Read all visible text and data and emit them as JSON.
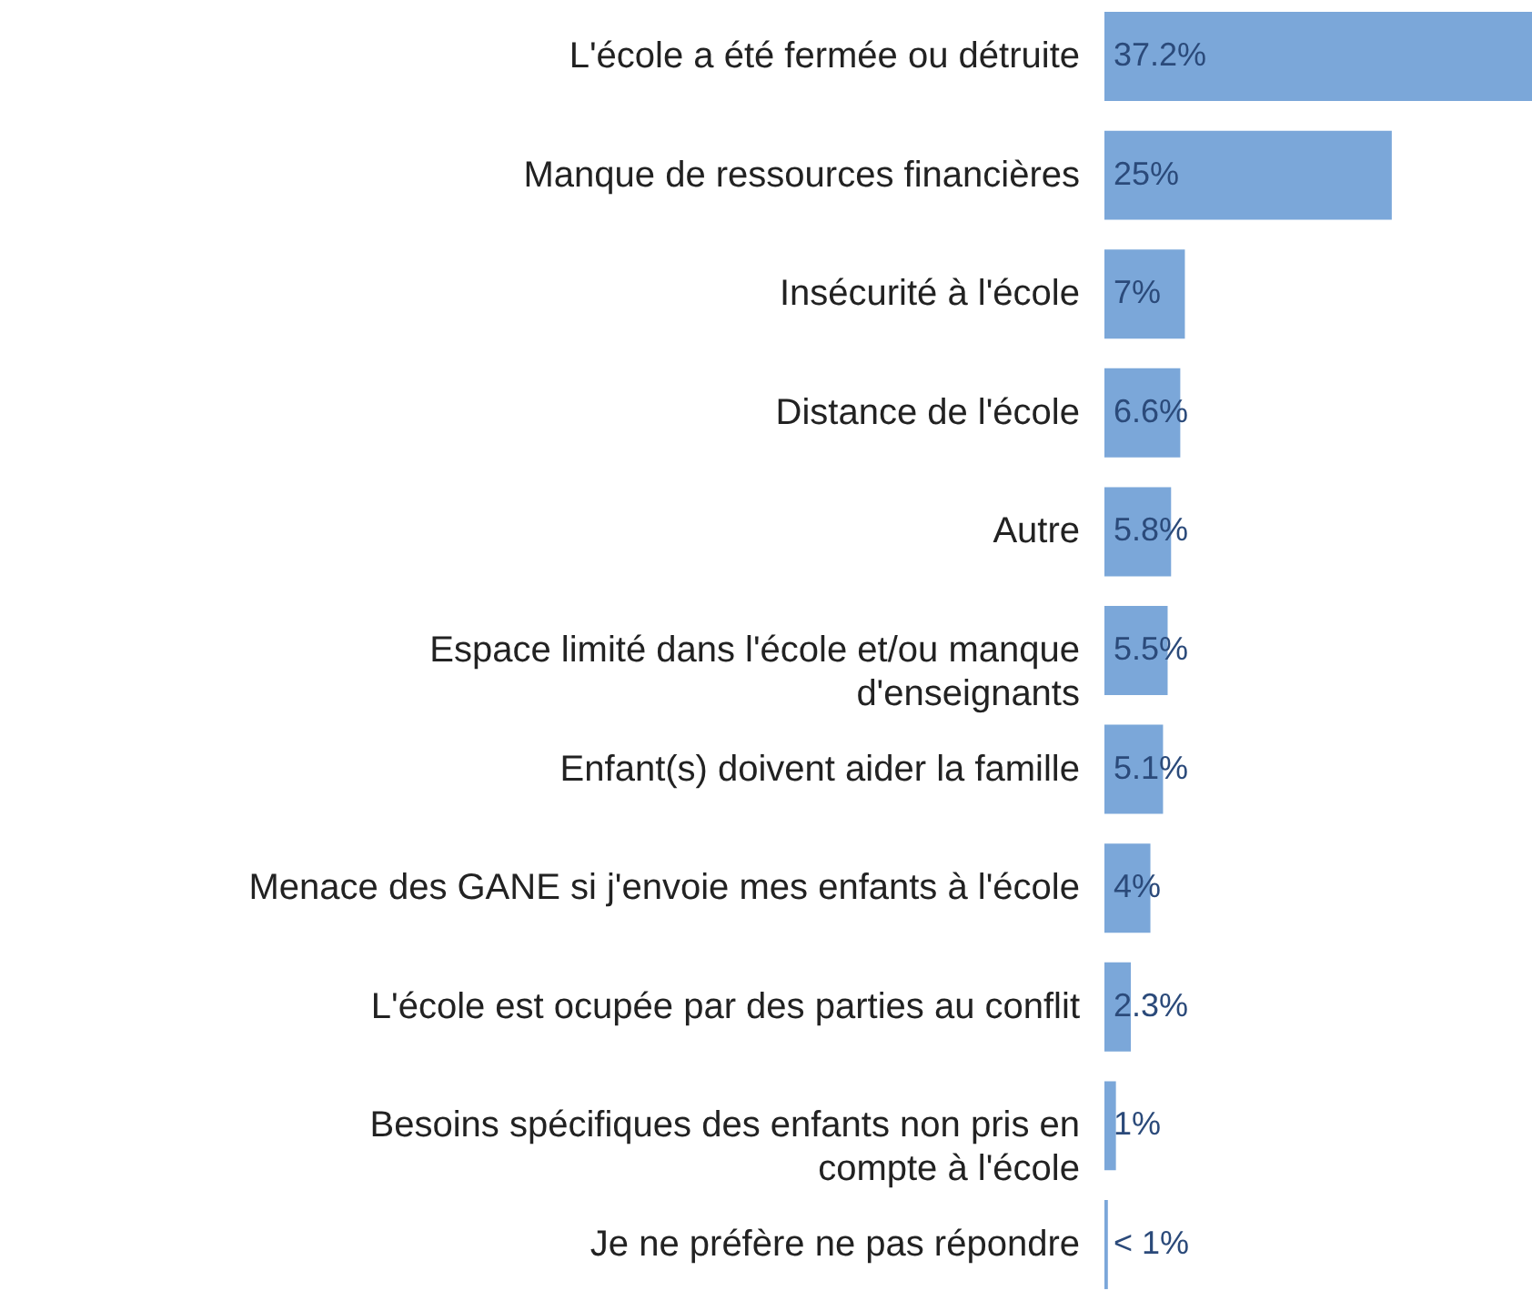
{
  "chart_data": {
    "type": "bar",
    "orientation": "horizontal",
    "categories": [
      "L'école a été fermée ou détruite",
      "Manque de ressources financières",
      "Insécurité à l'école",
      "Distance de l'école",
      "Autre",
      "Espace limité dans l'école et/ou manque d'enseignants",
      "Enfant(s) doivent aider la famille",
      "Menace des GANE si j'envoie mes enfants à l'école",
      "L'école est ocupée par des parties au conflit",
      "Besoins spécifiques des enfants non pris en compte à l'école",
      "Je ne préfère ne pas répondre"
    ],
    "values": [
      37.2,
      25,
      7,
      6.6,
      5.8,
      5.5,
      5.1,
      4,
      2.3,
      1,
      0.3
    ],
    "value_labels": [
      "37.2%",
      "25%",
      "7%",
      "6.6%",
      "5.8%",
      "5.5%",
      "5.1%",
      "4%",
      "2.3%",
      "1%",
      "< 1%"
    ],
    "color": "#7ba7d9"
  }
}
